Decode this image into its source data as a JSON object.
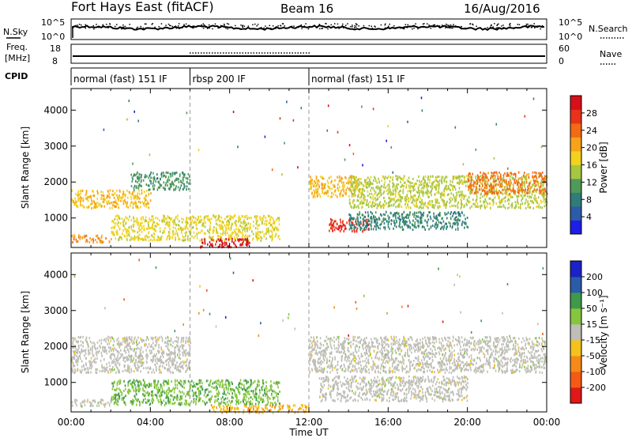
{
  "header": {
    "station": "Fort Hays East (fitACF)",
    "beam": "Beam 16",
    "date": "16/Aug/2016"
  },
  "status_panels": {
    "nsky_label": "N.Sky",
    "nsky_ticks": [
      "10^5",
      "10^0"
    ],
    "nsearch_label": "N.Search",
    "nsearch_ticks": [
      "10^5",
      "10^0"
    ],
    "freq_label_1": "Freq.",
    "freq_label_2": "[MHz]",
    "freq_ticks": [
      "18",
      "8"
    ],
    "nave_label": "Nave",
    "nave_ticks": [
      "60",
      "0"
    ],
    "cpid_label": "CPID",
    "cpid_segments": [
      {
        "label": "normal (fast) 151 IF",
        "start": 0,
        "end": 6
      },
      {
        "label": "rbsp 200 IF",
        "start": 6,
        "end": 12
      },
      {
        "label": "normal (fast) 151 IF",
        "start": 12,
        "end": 24
      }
    ]
  },
  "axes": {
    "xlabel": "Time UT",
    "ylabel": "Slant Range [km]",
    "x_ticks": [
      "00:00",
      "04:00",
      "08:00",
      "12:00",
      "16:00",
      "20:00",
      "00:00"
    ],
    "y_ticks": [
      "1000",
      "2000",
      "3000",
      "4000"
    ]
  },
  "colorbars": {
    "power_label": "Power [dB]",
    "power_ticks": [
      "28",
      "24",
      "20",
      "16",
      "12",
      "8",
      "4"
    ],
    "velocity_label": "Velocity [m s⁻¹]",
    "velocity_ticks": [
      "200",
      "100",
      "50",
      "15",
      "-15",
      "-50",
      "-100",
      "-200"
    ]
  },
  "chart_data": [
    {
      "type": "heatmap",
      "name": "power",
      "xlim": [
        0,
        24
      ],
      "ylim": [
        180,
        4600
      ],
      "zlim": [
        0,
        30
      ],
      "x_unit": "hours UT",
      "colors": [
        "#1e1ee6",
        "#2b5ca8",
        "#2f7d79",
        "#4f9a5a",
        "#a7c640",
        "#f2d21e",
        "#f6a21a",
        "#f26a14",
        "#e8321a",
        "#d80f1a"
      ],
      "regions": [
        {
          "x": [
            0.0,
            4.0
          ],
          "y": [
            1300,
            1800
          ],
          "value": 18
        },
        {
          "x": [
            3.0,
            6.0
          ],
          "y": [
            1800,
            2300
          ],
          "value": 10
        },
        {
          "x": [
            0.0,
            2.0
          ],
          "y": [
            350,
            550
          ],
          "value": 20
        },
        {
          "x": [
            2.0,
            10.5
          ],
          "y": [
            400,
            1100
          ],
          "value": 16
        },
        {
          "x": [
            6.5,
            9.0
          ],
          "y": [
            200,
            450
          ],
          "value": 28
        },
        {
          "x": [
            12.0,
            14.5
          ],
          "y": [
            1600,
            2200
          ],
          "value": 18
        },
        {
          "x": [
            13.0,
            15.0
          ],
          "y": [
            650,
            1000
          ],
          "value": 26
        },
        {
          "x": [
            14.0,
            24.0
          ],
          "y": [
            1300,
            2200
          ],
          "value": 14
        },
        {
          "x": [
            14.0,
            20.0
          ],
          "y": [
            700,
            1200
          ],
          "value": 8
        },
        {
          "x": [
            20.0,
            24.0
          ],
          "y": [
            1700,
            2300
          ],
          "value": 22
        }
      ]
    },
    {
      "type": "heatmap",
      "name": "velocity",
      "xlim": [
        0,
        24
      ],
      "ylim": [
        180,
        4600
      ],
      "zlim": [
        -200,
        200
      ],
      "x_unit": "hours UT",
      "colors": [
        "#e01818",
        "#f45a14",
        "#f68a18",
        "#f4c21c",
        "#bebeb6",
        "#86c63e",
        "#3e9a4a",
        "#2a5ca8",
        "#1a22c8"
      ],
      "regions": [
        {
          "x": [
            0.0,
            6.0
          ],
          "y": [
            1300,
            2300
          ],
          "value": 0
        },
        {
          "x": [
            0.0,
            2.0
          ],
          "y": [
            350,
            550
          ],
          "value": 0
        },
        {
          "x": [
            2.0,
            10.5
          ],
          "y": [
            400,
            1100
          ],
          "value": 60
        },
        {
          "x": [
            7.0,
            12.0
          ],
          "y": [
            180,
            400
          ],
          "value": -60
        },
        {
          "x": [
            12.0,
            24.0
          ],
          "y": [
            1300,
            2300
          ],
          "value": 0
        },
        {
          "x": [
            12.5,
            20.0
          ],
          "y": [
            500,
            1200
          ],
          "value": 0
        }
      ]
    }
  ]
}
